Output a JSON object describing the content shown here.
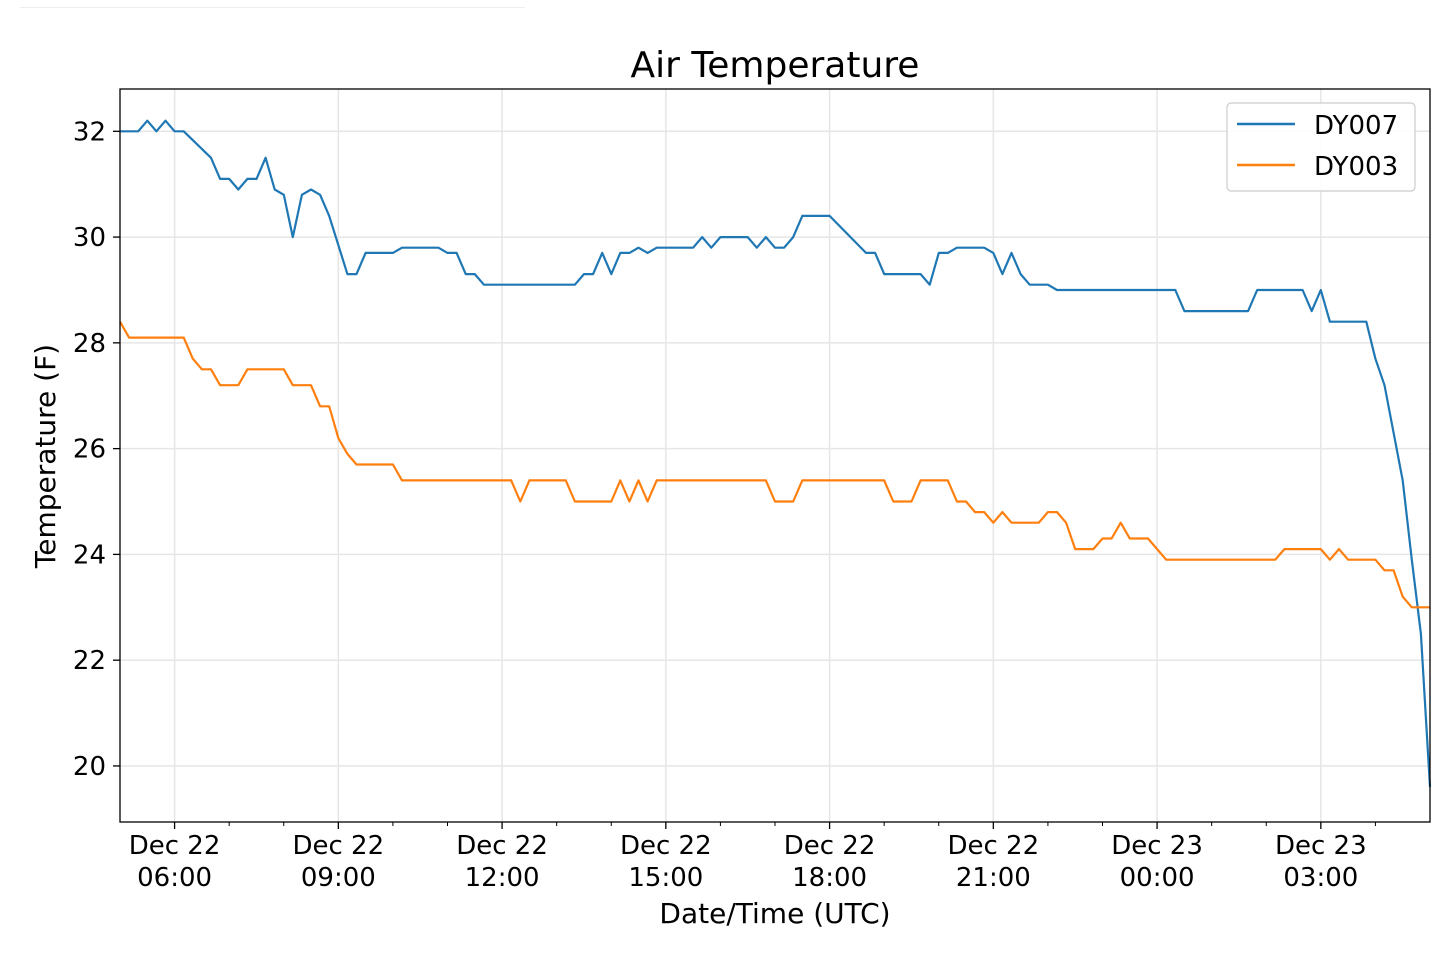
{
  "chart_data": {
    "type": "line",
    "title": "Air Temperature",
    "xlabel": "Date/Time (UTC)",
    "ylabel": "Temperature (F)",
    "x_units": "minutes since Dec 22 00:00 UTC",
    "xlim": [
      300,
      1740
    ],
    "ylim": [
      18.94,
      32.8
    ],
    "grid": true,
    "legend_position": "top-right",
    "yticks": [
      20,
      22,
      24,
      26,
      28,
      30,
      32
    ],
    "xticks": [
      {
        "value": 360,
        "line1": "Dec 22",
        "line2": "06:00"
      },
      {
        "value": 540,
        "line1": "Dec 22",
        "line2": "09:00"
      },
      {
        "value": 720,
        "line1": "Dec 22",
        "line2": "12:00"
      },
      {
        "value": 900,
        "line1": "Dec 22",
        "line2": "15:00"
      },
      {
        "value": 1080,
        "line1": "Dec 22",
        "line2": "18:00"
      },
      {
        "value": 1260,
        "line1": "Dec 22",
        "line2": "21:00"
      },
      {
        "value": 1440,
        "line1": "Dec 23",
        "line2": "00:00"
      },
      {
        "value": 1620,
        "line1": "Dec 23",
        "line2": "03:00"
      }
    ],
    "minor_xticks": [
      420,
      480,
      600,
      660,
      780,
      840,
      960,
      1020,
      1140,
      1200,
      1320,
      1380,
      1500,
      1560,
      1680
    ],
    "series": [
      {
        "name": "DY007",
        "color": "#1f77b4",
        "points": [
          [
            300,
            32.0
          ],
          [
            320,
            32.0
          ],
          [
            330,
            32.2
          ],
          [
            340,
            32.0
          ],
          [
            350,
            32.2
          ],
          [
            360,
            32.0
          ],
          [
            370,
            32.0
          ],
          [
            400,
            31.5
          ],
          [
            410,
            31.1
          ],
          [
            420,
            31.1
          ],
          [
            430,
            30.9
          ],
          [
            440,
            31.1
          ],
          [
            450,
            31.1
          ],
          [
            460,
            31.5
          ],
          [
            470,
            30.9
          ],
          [
            480,
            30.8
          ],
          [
            490,
            30.0
          ],
          [
            500,
            30.8
          ],
          [
            510,
            30.9
          ],
          [
            520,
            30.8
          ],
          [
            530,
            30.4
          ],
          [
            550,
            29.3
          ],
          [
            560,
            29.3
          ],
          [
            570,
            29.7
          ],
          [
            600,
            29.7
          ],
          [
            610,
            29.8
          ],
          [
            650,
            29.8
          ],
          [
            660,
            29.7
          ],
          [
            670,
            29.7
          ],
          [
            680,
            29.3
          ],
          [
            690,
            29.3
          ],
          [
            700,
            29.1
          ],
          [
            800,
            29.1
          ],
          [
            810,
            29.3
          ],
          [
            820,
            29.3
          ],
          [
            830,
            29.7
          ],
          [
            840,
            29.3
          ],
          [
            850,
            29.7
          ],
          [
            860,
            29.7
          ],
          [
            870,
            29.8
          ],
          [
            880,
            29.7
          ],
          [
            890,
            29.8
          ],
          [
            930,
            29.8
          ],
          [
            940,
            30.0
          ],
          [
            950,
            29.8
          ],
          [
            960,
            30.0
          ],
          [
            990,
            30.0
          ],
          [
            1000,
            29.8
          ],
          [
            1010,
            30.0
          ],
          [
            1020,
            29.8
          ],
          [
            1030,
            29.8
          ],
          [
            1040,
            30.0
          ],
          [
            1050,
            30.4
          ],
          [
            1080,
            30.4
          ],
          [
            1120,
            29.7
          ],
          [
            1130,
            29.7
          ],
          [
            1140,
            29.3
          ],
          [
            1180,
            29.3
          ],
          [
            1190,
            29.1
          ],
          [
            1200,
            29.7
          ],
          [
            1210,
            29.7
          ],
          [
            1220,
            29.8
          ],
          [
            1250,
            29.8
          ],
          [
            1260,
            29.7
          ],
          [
            1270,
            29.3
          ],
          [
            1280,
            29.7
          ],
          [
            1290,
            29.3
          ],
          [
            1300,
            29.1
          ],
          [
            1320,
            29.1
          ],
          [
            1330,
            29.0
          ],
          [
            1460,
            29.0
          ],
          [
            1470,
            28.6
          ],
          [
            1540,
            28.6
          ],
          [
            1550,
            29.0
          ],
          [
            1600,
            29.0
          ],
          [
            1610,
            28.6
          ],
          [
            1620,
            29.0
          ],
          [
            1630,
            28.4
          ],
          [
            1670,
            28.4
          ],
          [
            1680,
            27.7
          ],
          [
            1690,
            27.2
          ],
          [
            1700,
            26.3
          ],
          [
            1710,
            25.4
          ],
          [
            1720,
            23.9
          ],
          [
            1730,
            22.5
          ],
          [
            1740,
            19.6
          ]
        ]
      },
      {
        "name": "DY003",
        "color": "#ff7f0e",
        "points": [
          [
            300,
            28.4
          ],
          [
            310,
            28.1
          ],
          [
            370,
            28.1
          ],
          [
            380,
            27.7
          ],
          [
            390,
            27.5
          ],
          [
            400,
            27.5
          ],
          [
            410,
            27.2
          ],
          [
            430,
            27.2
          ],
          [
            440,
            27.5
          ],
          [
            480,
            27.5
          ],
          [
            490,
            27.2
          ],
          [
            510,
            27.2
          ],
          [
            520,
            26.8
          ],
          [
            530,
            26.8
          ],
          [
            540,
            26.2
          ],
          [
            550,
            25.9
          ],
          [
            560,
            25.7
          ],
          [
            600,
            25.7
          ],
          [
            610,
            25.4
          ],
          [
            730,
            25.4
          ],
          [
            740,
            25.0
          ],
          [
            750,
            25.4
          ],
          [
            790,
            25.4
          ],
          [
            800,
            25.0
          ],
          [
            840,
            25.0
          ],
          [
            850,
            25.4
          ],
          [
            860,
            25.0
          ],
          [
            870,
            25.4
          ],
          [
            880,
            25.0
          ],
          [
            890,
            25.4
          ],
          [
            1010,
            25.4
          ],
          [
            1020,
            25.0
          ],
          [
            1040,
            25.0
          ],
          [
            1050,
            25.4
          ],
          [
            1140,
            25.4
          ],
          [
            1150,
            25.0
          ],
          [
            1170,
            25.0
          ],
          [
            1180,
            25.4
          ],
          [
            1210,
            25.4
          ],
          [
            1220,
            25.0
          ],
          [
            1230,
            25.0
          ],
          [
            1240,
            24.8
          ],
          [
            1250,
            24.8
          ],
          [
            1260,
            24.6
          ],
          [
            1270,
            24.8
          ],
          [
            1280,
            24.6
          ],
          [
            1310,
            24.6
          ],
          [
            1320,
            24.8
          ],
          [
            1330,
            24.8
          ],
          [
            1340,
            24.6
          ],
          [
            1350,
            24.1
          ],
          [
            1370,
            24.1
          ],
          [
            1380,
            24.3
          ],
          [
            1390,
            24.3
          ],
          [
            1400,
            24.6
          ],
          [
            1410,
            24.3
          ],
          [
            1430,
            24.3
          ],
          [
            1450,
            23.9
          ],
          [
            1570,
            23.9
          ],
          [
            1580,
            24.1
          ],
          [
            1620,
            24.1
          ],
          [
            1630,
            23.9
          ],
          [
            1640,
            24.1
          ],
          [
            1650,
            23.9
          ],
          [
            1680,
            23.9
          ],
          [
            1690,
            23.7
          ],
          [
            1700,
            23.7
          ],
          [
            1710,
            23.2
          ],
          [
            1720,
            23.0
          ],
          [
            1740,
            23.0
          ]
        ]
      }
    ]
  }
}
